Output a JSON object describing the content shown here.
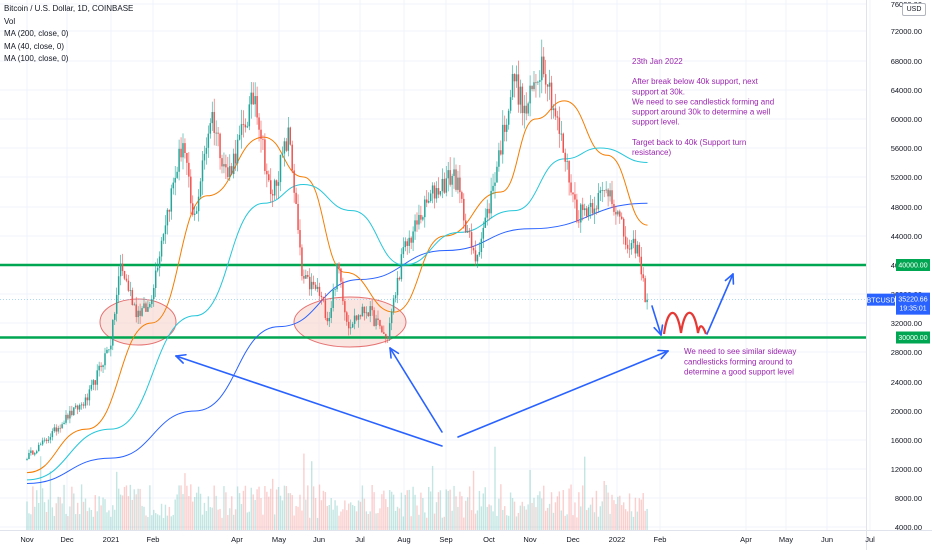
{
  "header": {
    "symbol_line": "Bitcoin / U.S. Dollar, 1D, COINBASE",
    "vol_label": "Vol",
    "ma_labels": [
      "MA (200, close, 0)",
      "MA (40, close, 0)",
      "MA (100, close, 0)"
    ],
    "currency_button": "USD"
  },
  "colors": {
    "up": "#26a69a",
    "down": "#ef5350",
    "ma200": "#2962ff",
    "ma40": "#f57c00",
    "ma100": "#26c6da",
    "support": "#00a651",
    "annotation": "#9c27b0",
    "arrow": "#2962ff",
    "ellipse_fill": "#f8d4cc",
    "ellipse_stroke": "#e57373",
    "price_tag": "#2962ff"
  },
  "annotations": {
    "main_note": [
      "23th Jan 2022",
      "",
      "After break below 40k support, next",
      "support at 30k.",
      "We need to see candlestick forming and",
      "support around 30k to determine a well",
      "support level.",
      "",
      "Target back to 40k (Support turn",
      "resistance)"
    ],
    "lower_note": [
      "We need to see similar sideway",
      "candlesticks forming around to",
      "determine a good support level"
    ]
  },
  "price_tag": {
    "ticker": "BTCUSD",
    "price": "35220.66",
    "countdown": "19:35:01"
  },
  "chart_data": {
    "type": "candlestick",
    "title": "Bitcoin / U.S. Dollar, 1D, COINBASE",
    "x_ticks": [
      "Nov",
      "Dec",
      "2021",
      "Feb",
      "Apr",
      "May",
      "Jun",
      "Jul",
      "Aug",
      "Sep",
      "Oct",
      "Nov",
      "Dec",
      "2022",
      "Feb",
      "Apr",
      "May",
      "Jun",
      "Jul"
    ],
    "y_ticks": [
      4000,
      8000,
      12000,
      16000,
      20000,
      24000,
      28000,
      32000,
      36000,
      40000,
      44000,
      48000,
      52000,
      56000,
      60000,
      64000,
      68000,
      72000,
      76000
    ],
    "y_top_label": "76000.00",
    "ylim": [
      4000,
      76000
    ],
    "horizontal_levels": [
      {
        "value": 40000,
        "label": "40000.00"
      },
      {
        "value": 30000,
        "label": "30000.00"
      }
    ],
    "last_price": 35220.66,
    "price_path": [
      [
        "2020-11-01",
        13700
      ],
      [
        "2020-11-15",
        15900
      ],
      [
        "2020-12-01",
        19200
      ],
      [
        "2020-12-15",
        21500
      ],
      [
        "2021-01-01",
        29500
      ],
      [
        "2021-01-08",
        40000
      ],
      [
        "2021-01-20",
        33500
      ],
      [
        "2021-01-29",
        34000
      ],
      [
        "2021-02-08",
        45000
      ],
      [
        "2021-02-21",
        57000
      ],
      [
        "2021-02-28",
        45500
      ],
      [
        "2021-03-13",
        61000
      ],
      [
        "2021-03-25",
        52000
      ],
      [
        "2021-04-14",
        63500
      ],
      [
        "2021-04-25",
        49000
      ],
      [
        "2021-05-09",
        58000
      ],
      [
        "2021-05-19",
        38000
      ],
      [
        "2021-05-31",
        36500
      ],
      [
        "2021-06-08",
        32500
      ],
      [
        "2021-06-15",
        40000
      ],
      [
        "2021-06-22",
        31800
      ],
      [
        "2021-07-06",
        34000
      ],
      [
        "2021-07-20",
        29800
      ],
      [
        "2021-07-31",
        41500
      ],
      [
        "2021-08-14",
        47000
      ],
      [
        "2021-08-23",
        50000
      ],
      [
        "2021-09-07",
        52500
      ],
      [
        "2021-09-21",
        40500
      ],
      [
        "2021-10-01",
        48000
      ],
      [
        "2021-10-20",
        66000
      ],
      [
        "2021-10-28",
        60500
      ],
      [
        "2021-11-10",
        68500
      ],
      [
        "2021-11-26",
        54000
      ],
      [
        "2021-12-04",
        47000
      ],
      [
        "2021-12-15",
        48500
      ],
      [
        "2021-12-27",
        50500
      ],
      [
        "2022-01-10",
        41500
      ],
      [
        "2022-01-15",
        43000
      ],
      [
        "2022-01-21",
        36000
      ],
      [
        "2022-01-23",
        35220.66
      ]
    ],
    "moving_averages": [
      {
        "name": "MA (200, close, 0)",
        "path": [
          [
            "2020-11-01",
            10000
          ],
          [
            "2021-01-01",
            13500
          ],
          [
            "2021-03-01",
            20000
          ],
          [
            "2021-05-01",
            31500
          ],
          [
            "2021-07-01",
            38000
          ],
          [
            "2021-09-01",
            42000
          ],
          [
            "2021-11-01",
            45000
          ],
          [
            "2022-01-23",
            48500
          ]
        ]
      },
      {
        "name": "MA (40, close, 0)",
        "path": [
          [
            "2020-11-01",
            11500
          ],
          [
            "2020-12-15",
            17500
          ],
          [
            "2021-01-31",
            32000
          ],
          [
            "2021-03-10",
            49500
          ],
          [
            "2021-04-20",
            57500
          ],
          [
            "2021-05-20",
            52000
          ],
          [
            "2021-06-20",
            39000
          ],
          [
            "2021-07-25",
            33500
          ],
          [
            "2021-08-31",
            44000
          ],
          [
            "2021-10-10",
            50000
          ],
          [
            "2021-11-05",
            60000
          ],
          [
            "2021-11-25",
            62500
          ],
          [
            "2021-12-25",
            55000
          ],
          [
            "2022-01-23",
            45500
          ]
        ]
      },
      {
        "name": "MA (100, close, 0)",
        "path": [
          [
            "2020-11-01",
            10500
          ],
          [
            "2021-01-01",
            17500
          ],
          [
            "2021-03-01",
            33000
          ],
          [
            "2021-04-20",
            48500
          ],
          [
            "2021-05-20",
            51000
          ],
          [
            "2021-06-25",
            47500
          ],
          [
            "2021-08-01",
            40000
          ],
          [
            "2021-09-10",
            44500
          ],
          [
            "2021-10-20",
            47500
          ],
          [
            "2021-11-25",
            54500
          ],
          [
            "2021-12-20",
            56000
          ],
          [
            "2022-01-23",
            54000
          ]
        ]
      }
    ]
  }
}
